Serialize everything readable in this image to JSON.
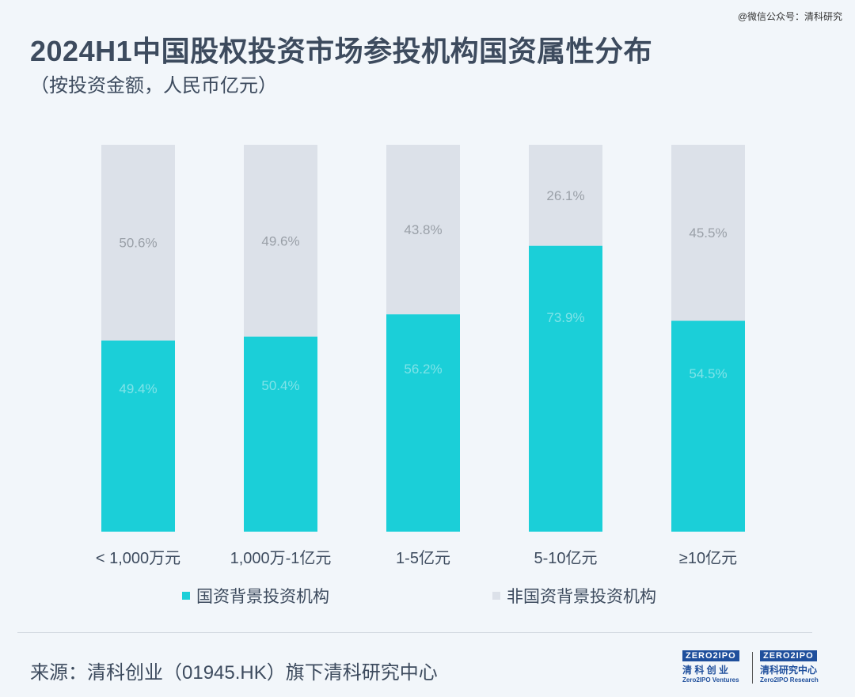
{
  "watermark": "@微信公众号：清科研究",
  "chart_data": {
    "type": "bar",
    "stacked": true,
    "title": "2024H1中国股权投资市场参投机构国资属性分布",
    "subtitle": "（按投资金额，人民币亿元）",
    "categories": [
      "< 1,000万元",
      "1,000万-1亿元",
      "1-5亿元",
      "5-10亿元",
      "≥10亿元"
    ],
    "series": [
      {
        "name": "国资背景投资机构",
        "color": "#1bcfd8",
        "values": [
          49.4,
          50.4,
          56.2,
          73.9,
          54.5
        ],
        "labels": [
          "49.4%",
          "50.4%",
          "56.2%",
          "73.9%",
          "54.5%"
        ]
      },
      {
        "name": "非国资背景投资机构",
        "color": "#dce1e9",
        "values": [
          50.6,
          49.6,
          43.8,
          26.1,
          45.5
        ],
        "labels": [
          "50.6%",
          "49.6%",
          "43.8%",
          "26.1%",
          "45.5%"
        ]
      }
    ],
    "ylim": [
      0,
      100
    ],
    "unit": "%",
    "legend": "bottom"
  },
  "source": "来源：清科创业（01945.HK）旗下清科研究中心",
  "logos": [
    {
      "box": "ZERO2IPO",
      "cn": "清 科 创 业",
      "en": "Zero2IPO Ventures"
    },
    {
      "box": "ZERO2IPO",
      "cn": "清科研究中心",
      "en": "Zero2IPO Research"
    }
  ]
}
